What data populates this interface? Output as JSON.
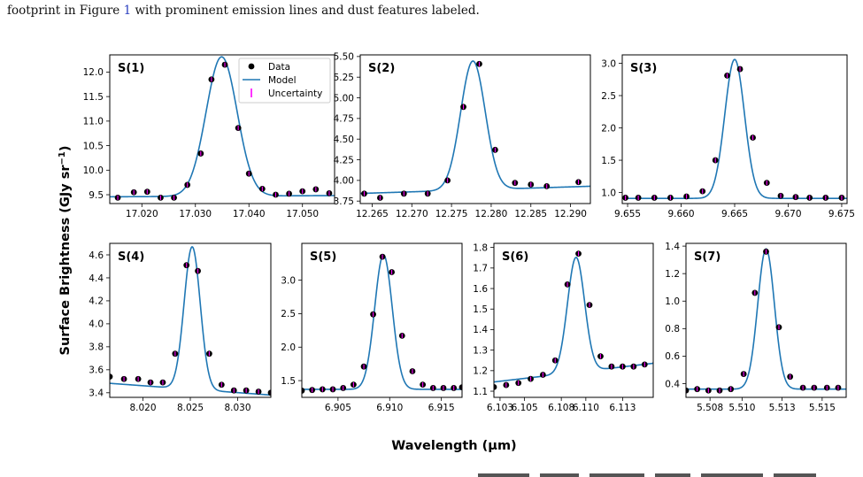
{
  "caption": {
    "before": "footprint in Figure ",
    "ref": "1",
    "after": " with prominent emission lines and dust features labeled."
  },
  "figure": {
    "ylabel": "Surface Brightness (GJy sr",
    "ylabel_exp": "−1",
    "ylabel_close": ")",
    "xlabel": "Wavelength (μm)"
  },
  "legend": {
    "data": "Data",
    "model": "Model",
    "uncertainty": "Uncertainty"
  },
  "colors": {
    "model": "#1f77b4",
    "data": "#000000",
    "uncertainty": "#ff00ff"
  },
  "chart_data": [
    {
      "type": "scatter",
      "title": "S(1)",
      "xlim": [
        17.014,
        17.056
      ],
      "ylim": [
        9.32,
        12.35
      ],
      "xticks": [
        17.02,
        17.03,
        17.04,
        17.05
      ],
      "xtick_labels": [
        "17.020",
        "17.030",
        "17.040",
        "17.050"
      ],
      "yticks": [
        9.5,
        10.0,
        10.5,
        11.0,
        11.5,
        12.0
      ],
      "ytick_labels": [
        "9.5",
        "10.0",
        "10.5",
        "11.0",
        "11.5",
        "12.0"
      ],
      "x": [
        17.0155,
        17.0185,
        17.021,
        17.0235,
        17.026,
        17.0285,
        17.031,
        17.033,
        17.0355,
        17.038,
        17.04,
        17.0425,
        17.045,
        17.0475,
        17.05,
        17.0525,
        17.055
      ],
      "y": [
        9.44,
        9.55,
        9.56,
        9.44,
        9.44,
        9.7,
        10.34,
        11.85,
        12.15,
        10.86,
        9.93,
        9.62,
        9.5,
        9.52,
        9.57,
        9.61,
        9.53
      ],
      "model": {
        "baseline": 9.47,
        "slope": 0.6,
        "x0": 17.0349,
        "amp": 2.84,
        "sigma": 0.0029,
        "xref": 17.0349
      }
    },
    {
      "type": "scatter",
      "title": "S(2)",
      "xlim": [
        12.2635,
        12.2925
      ],
      "ylim": [
        3.72,
        5.52
      ],
      "xticks": [
        12.265,
        12.27,
        12.275,
        12.28,
        12.285,
        12.29
      ],
      "xtick_labels": [
        "12.265",
        "12.270",
        "12.275",
        "12.280",
        "12.285",
        "12.290"
      ],
      "yticks": [
        3.75,
        4.0,
        4.25,
        4.5,
        4.75,
        5.0,
        5.25,
        5.5
      ],
      "ytick_labels": [
        "3.75",
        "4.00",
        "4.25",
        "4.50",
        "4.75",
        "5.00",
        "5.25",
        "5.50"
      ],
      "x": [
        12.264,
        12.266,
        12.269,
        12.272,
        12.2745,
        12.2765,
        12.2785,
        12.2805,
        12.283,
        12.285,
        12.287,
        12.291
      ],
      "y": [
        3.84,
        3.79,
        3.84,
        3.84,
        4.0,
        4.89,
        5.41,
        4.37,
        3.97,
        3.95,
        3.93,
        3.98
      ],
      "model": {
        "baseline": 3.885,
        "slope": 3.0,
        "x0": 12.2777,
        "amp": 1.56,
        "sigma": 0.00155,
        "xref": 12.2777
      }
    },
    {
      "type": "scatter",
      "title": "S(3)",
      "xlim": [
        9.6545,
        9.6755
      ],
      "ylim": [
        0.83,
        3.13
      ],
      "xticks": [
        9.655,
        9.66,
        9.665,
        9.67,
        9.675
      ],
      "xtick_labels": [
        "9.655",
        "9.660",
        "9.665",
        "9.670",
        "9.675"
      ],
      "yticks": [
        1.0,
        1.5,
        2.0,
        2.5,
        3.0
      ],
      "ytick_labels": [
        "1.0",
        "1.5",
        "2.0",
        "2.5",
        "3.0"
      ],
      "x": [
        9.6548,
        9.656,
        9.6575,
        9.659,
        9.6605,
        9.662,
        9.6632,
        9.6643,
        9.6655,
        9.6667,
        9.668,
        9.6693,
        9.6707,
        9.672,
        9.6735,
        9.675
      ],
      "y": [
        0.92,
        0.92,
        0.92,
        0.92,
        0.94,
        1.02,
        1.5,
        2.81,
        2.91,
        1.85,
        1.15,
        0.95,
        0.93,
        0.92,
        0.92,
        0.92
      ],
      "model": {
        "baseline": 0.91,
        "slope": 0.0,
        "x0": 9.665,
        "amp": 2.15,
        "sigma": 0.00092,
        "xref": 9.665
      }
    },
    {
      "type": "scatter",
      "title": "S(4)",
      "xlim": [
        8.0165,
        8.0335
      ],
      "ylim": [
        3.36,
        4.7
      ],
      "xticks": [
        8.02,
        8.025,
        8.03
      ],
      "xtick_labels": [
        "8.020",
        "8.025",
        "8.030"
      ],
      "yticks": [
        3.4,
        3.6,
        3.8,
        4.0,
        4.2,
        4.4,
        4.6
      ],
      "ytick_labels": [
        "3.4",
        "3.6",
        "3.8",
        "4.0",
        "4.2",
        "4.4",
        "4.6"
      ],
      "x": [
        8.0165,
        8.018,
        8.0195,
        8.0208,
        8.0221,
        8.0234,
        8.0246,
        8.0258,
        8.027,
        8.0283,
        8.0296,
        8.0309,
        8.0322,
        8.0335
      ],
      "y": [
        3.54,
        3.52,
        3.52,
        3.49,
        3.49,
        3.74,
        4.51,
        4.46,
        3.74,
        3.47,
        3.42,
        3.42,
        3.41,
        3.4
      ],
      "model": {
        "baseline": 3.43,
        "slope": -6.0,
        "x0": 8.0252,
        "amp": 1.24,
        "sigma": 0.00085,
        "xref": 8.0252
      }
    },
    {
      "type": "scatter",
      "title": "S(5)",
      "xlim": [
        6.9015,
        6.917
      ],
      "ylim": [
        1.25,
        3.55
      ],
      "xticks": [
        6.905,
        6.91,
        6.915
      ],
      "xtick_labels": [
        "6.905",
        "6.910",
        "6.915"
      ],
      "yticks": [
        1.5,
        2.0,
        2.5,
        3.0
      ],
      "ytick_labels": [
        "1.5",
        "2.0",
        "2.5",
        "3.0"
      ],
      "x": [
        6.9015,
        6.9025,
        6.9035,
        6.9045,
        6.9055,
        6.9065,
        6.9075,
        6.9084,
        6.9093,
        6.9102,
        6.9112,
        6.9122,
        6.9132,
        6.9142,
        6.9152,
        6.9162,
        6.917
      ],
      "y": [
        1.35,
        1.36,
        1.37,
        1.37,
        1.39,
        1.44,
        1.71,
        2.49,
        3.35,
        3.12,
        2.17,
        1.64,
        1.44,
        1.39,
        1.39,
        1.39,
        1.4
      ],
      "model": {
        "baseline": 1.37,
        "slope": 0.0,
        "x0": 6.9094,
        "amp": 2.01,
        "sigma": 0.00085,
        "xref": 6.9094
      }
    },
    {
      "type": "scatter",
      "title": "S(6)",
      "xlim": [
        6.1025,
        6.1155
      ],
      "ylim": [
        1.07,
        1.82
      ],
      "xticks": [
        6.103,
        6.105,
        6.108,
        6.11,
        6.113
      ],
      "xtick_labels": [
        "6.103",
        "6.105",
        "6.108",
        "6.110",
        "6.113"
      ],
      "yticks": [
        1.1,
        1.2,
        1.3,
        1.4,
        1.5,
        1.6,
        1.7,
        1.8
      ],
      "ytick_labels": [
        "1.1",
        "1.2",
        "1.3",
        "1.4",
        "1.5",
        "1.6",
        "1.7",
        "1.8"
      ],
      "x": [
        6.1025,
        6.1035,
        6.1045,
        6.1055,
        6.1065,
        6.1075,
        6.1085,
        6.1094,
        6.1103,
        6.1112,
        6.1121,
        6.113,
        6.1139,
        6.1148,
        6.1157
      ],
      "y": [
        1.12,
        1.13,
        1.14,
        1.16,
        1.18,
        1.25,
        1.62,
        1.77,
        1.52,
        1.27,
        1.22,
        1.22,
        1.22,
        1.23,
        1.24
      ],
      "model": {
        "baseline": 1.21,
        "slope": 7.0,
        "x0": 6.1092,
        "amp": 0.56,
        "sigma": 0.0007,
        "xref": 6.1118
      }
    },
    {
      "type": "scatter",
      "title": "S(7)",
      "xlim": [
        5.5065,
        5.5165
      ],
      "ylim": [
        0.3,
        1.42
      ],
      "xticks": [
        5.508,
        5.51,
        5.5125,
        5.515
      ],
      "xtick_labels": [
        "5.508",
        "5.510",
        "5.513",
        "5.515"
      ],
      "yticks": [
        0.4,
        0.6,
        0.8,
        1.0,
        1.2,
        1.4
      ],
      "ytick_labels": [
        "0.4",
        "0.6",
        "0.8",
        "1.0",
        "1.2",
        "1.4"
      ],
      "x": [
        5.5065,
        5.5072,
        5.5079,
        5.5086,
        5.5093,
        5.5101,
        5.5108,
        5.5115,
        5.5123,
        5.513,
        5.5138,
        5.5145,
        5.5153,
        5.516
      ],
      "y": [
        0.35,
        0.36,
        0.35,
        0.35,
        0.36,
        0.47,
        1.06,
        1.36,
        0.81,
        0.45,
        0.37,
        0.37,
        0.37,
        0.37
      ],
      "model": {
        "baseline": 0.36,
        "slope": 0.0,
        "x0": 5.5115,
        "amp": 1.02,
        "sigma": 0.00052,
        "xref": 5.5115
      }
    }
  ]
}
